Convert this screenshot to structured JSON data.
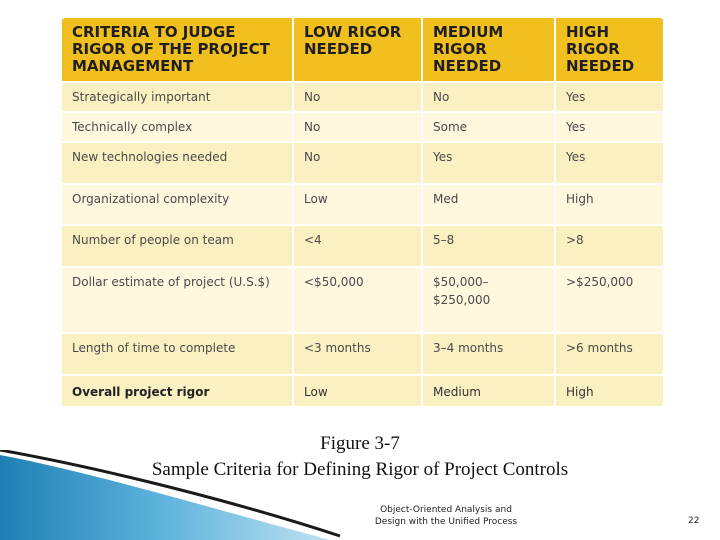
{
  "table": {
    "headers": [
      "CRITERIA TO JUDGE RIGOR OF THE PROJECT MANAGEMENT",
      "LOW RIGOR NEEDED",
      "MEDIUM RIGOR NEEDED",
      "HIGH RIGOR NEEDED"
    ],
    "rows": [
      [
        "Strategically important",
        "No",
        "No",
        "Yes"
      ],
      [
        "Technically complex",
        "No",
        "Some",
        "Yes"
      ],
      [
        "New technologies needed",
        "No",
        "Yes",
        "Yes"
      ],
      [
        "Organizational complexity",
        "Low",
        "Med",
        "High"
      ],
      [
        "Number of people on team",
        "<4",
        "5–8",
        ">8"
      ],
      [
        "Dollar estimate of project (U.S.$)",
        "<$50,000",
        "$50,000–$250,000",
        ">$250,000"
      ],
      [
        "Length of time to complete",
        "<3 months",
        "3–4 months",
        ">6 months"
      ]
    ],
    "total_row": [
      "Overall project rigor",
      "Low",
      "Medium",
      "High"
    ]
  },
  "caption": {
    "line1": "Figure 3-7",
    "line2": "Sample Criteria for Defining Rigor of Project Controls"
  },
  "footer": {
    "line1": "Object-Oriented Analysis and",
    "line2": "Design with the Unified Process",
    "page_number": "22"
  },
  "colors": {
    "header_bg": "#f2c01e",
    "row_odd_bg": "#fbf0c2",
    "row_even_bg": "#fff8df",
    "swoosh_blue": "#2a8fc0"
  }
}
